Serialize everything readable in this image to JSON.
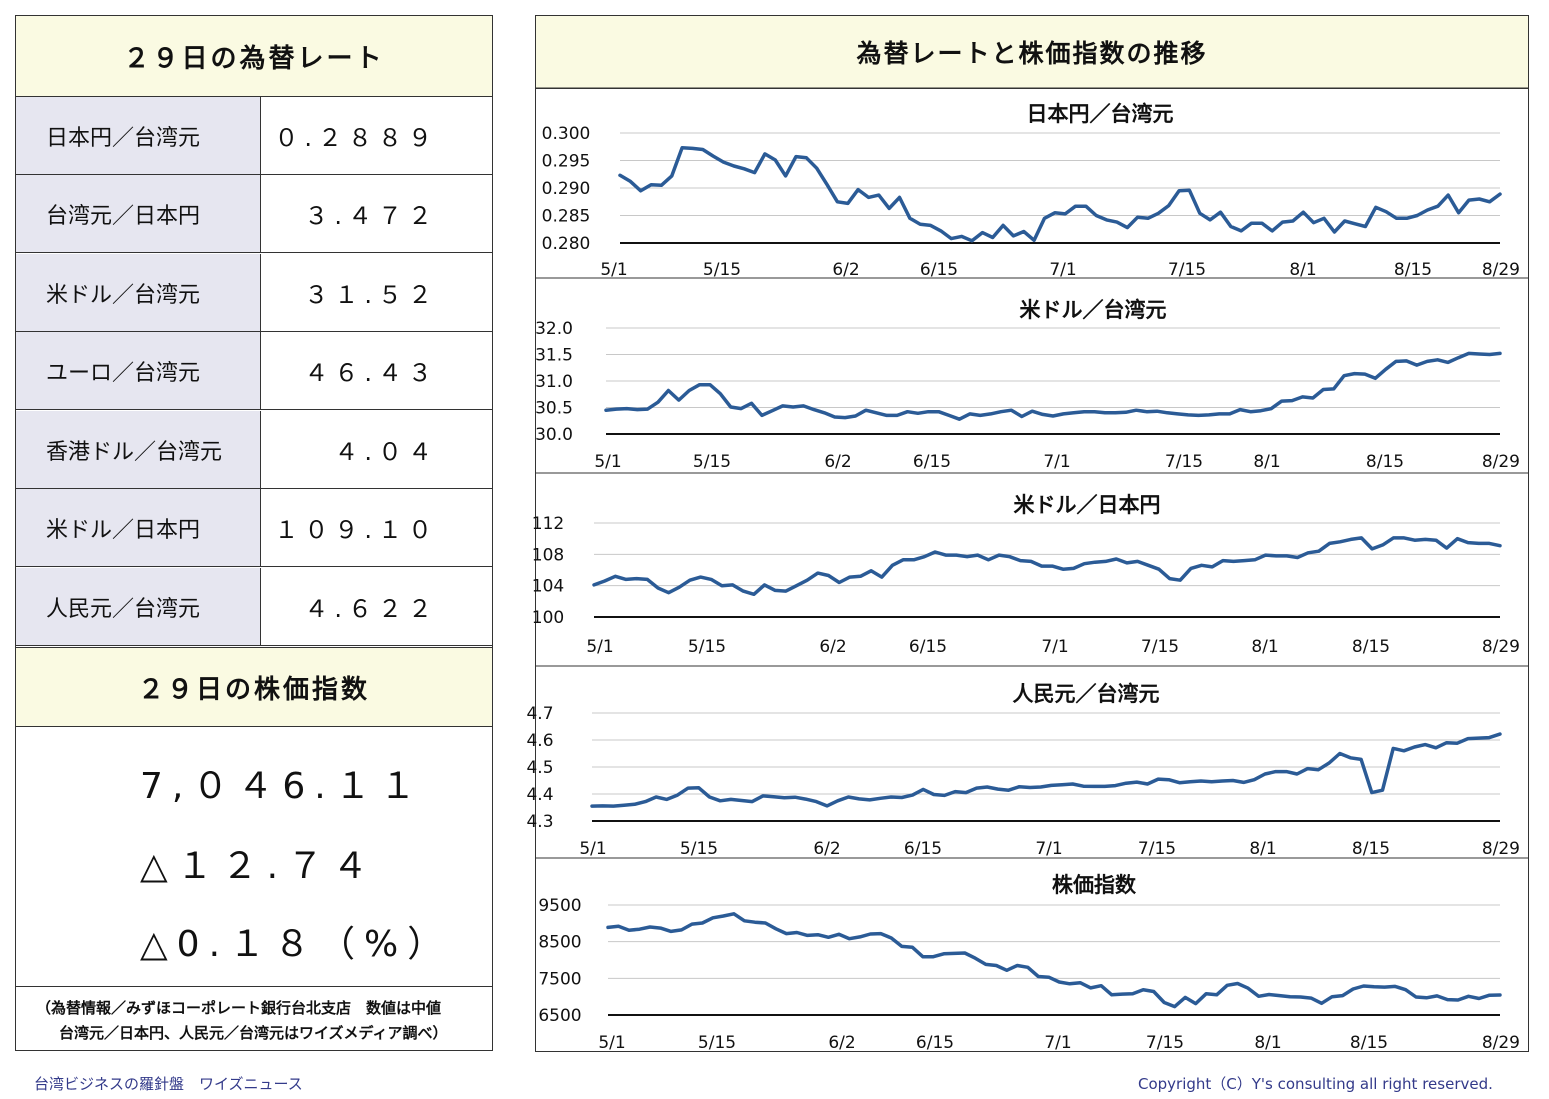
{
  "left": {
    "rates_title": "２９日の為替レート",
    "rates": [
      {
        "label": "日本円／台湾元",
        "value": "０.２８８９"
      },
      {
        "label": "台湾元／日本円",
        "value": "３.４７２"
      },
      {
        "label": "米ドル／台湾元",
        "value": "３１.５２"
      },
      {
        "label": "ユーロ／台湾元",
        "value": "４６.４３"
      },
      {
        "label": "香港ドル／台湾元",
        "value": "４.０４"
      },
      {
        "label": "米ドル／日本円",
        "value": "１０９.１０"
      },
      {
        "label": "人民元／台湾元",
        "value": "４.６２２"
      }
    ],
    "stock_title": "２９日の株価指数",
    "stock_index": "7,０４6.１１",
    "stock_change": "△１２.７４",
    "stock_pct": "△0.１８（%）",
    "note_line1": "（為替情報／みずほコーポレート銀行台北支店　数値は中値",
    "note_line2": "台湾元／日本円、人民元／台湾元はワイズメディア調べ）"
  },
  "right": {
    "title": "為替レートと株価指数の推移"
  },
  "footer": {
    "left": "台湾ビジネスの羅針盤　ワイズニュース",
    "right": "Copyright（C）Y's consulting all right reserved."
  },
  "colors": {
    "line": "#2b5b96",
    "header_bg": "#fafae2",
    "label_bg": "#e6e6f0",
    "grid": "#c8c8c8",
    "footer_text": "#333a8a"
  },
  "chart_data": [
    {
      "type": "line",
      "title": "日本円／台湾元",
      "ylim": [
        0.28,
        0.3
      ],
      "yticks": [
        "0.300",
        "0.295",
        "0.290",
        "0.285",
        "0.280"
      ],
      "xticks": [
        "5/1",
        "5/15",
        "6/2",
        "6/15",
        "7/1",
        "7/15",
        "8/1",
        "8/15",
        "8/29"
      ],
      "values": [
        0.2923,
        0.2912,
        0.2895,
        0.2906,
        0.2905,
        0.2922,
        0.2973,
        0.2972,
        0.297,
        0.2958,
        0.2947,
        0.294,
        0.2935,
        0.2928,
        0.2962,
        0.2951,
        0.2922,
        0.2957,
        0.2955,
        0.2936,
        0.2906,
        0.2875,
        0.2872,
        0.2897,
        0.2883,
        0.2887,
        0.2863,
        0.2883,
        0.2845,
        0.2834,
        0.2832,
        0.2822,
        0.2808,
        0.2812,
        0.2804,
        0.2819,
        0.281,
        0.2832,
        0.2813,
        0.2821,
        0.2805,
        0.2845,
        0.2855,
        0.2853,
        0.2867,
        0.2867,
        0.285,
        0.2842,
        0.2838,
        0.2828,
        0.2847,
        0.2845,
        0.2854,
        0.2868,
        0.2895,
        0.2896,
        0.2854,
        0.2842,
        0.2856,
        0.283,
        0.2822,
        0.2836,
        0.2836,
        0.2822,
        0.2838,
        0.284,
        0.2856,
        0.2837,
        0.2845,
        0.282,
        0.284,
        0.2835,
        0.283,
        0.2865,
        0.2857,
        0.2845,
        0.2845,
        0.285,
        0.286,
        0.2867,
        0.2887,
        0.2855,
        0.2878,
        0.288,
        0.2875,
        0.2889
      ]
    },
    {
      "type": "line",
      "title": "米ドル／台湾元",
      "ylim": [
        30.0,
        32.0
      ],
      "yticks": [
        "32.0",
        "31.5",
        "31.0",
        "30.5",
        "30.0"
      ],
      "xticks": [
        "5/1",
        "5/15",
        "6/2",
        "6/15",
        "7/1",
        "7/15",
        "8/1",
        "8/15",
        "8/29"
      ],
      "values": [
        30.45,
        30.47,
        30.48,
        30.46,
        30.47,
        30.6,
        30.82,
        30.64,
        30.82,
        30.93,
        30.93,
        30.76,
        30.51,
        30.48,
        30.58,
        30.35,
        30.44,
        30.53,
        30.51,
        30.53,
        30.46,
        30.4,
        30.32,
        30.31,
        30.34,
        30.45,
        30.4,
        30.35,
        30.35,
        30.42,
        30.39,
        30.42,
        30.42,
        30.35,
        30.28,
        30.38,
        30.35,
        30.38,
        30.42,
        30.45,
        30.33,
        30.43,
        30.37,
        30.34,
        30.38,
        30.4,
        30.42,
        30.42,
        30.4,
        30.4,
        30.41,
        30.45,
        30.42,
        30.43,
        30.4,
        30.38,
        30.36,
        30.35,
        30.36,
        30.38,
        30.38,
        30.46,
        30.42,
        30.44,
        30.48,
        30.62,
        30.63,
        30.7,
        30.68,
        30.84,
        30.85,
        31.1,
        31.14,
        31.13,
        31.05,
        31.22,
        31.37,
        31.38,
        31.3,
        31.37,
        31.4,
        31.35,
        31.44,
        31.52,
        31.51,
        31.5,
        31.52
      ]
    },
    {
      "type": "line",
      "title": "米ドル／日本円",
      "ylim": [
        100,
        112
      ],
      "yticks": [
        "112",
        "108",
        "104",
        "100"
      ],
      "xticks": [
        "5/1",
        "5/15",
        "6/2",
        "6/15",
        "7/1",
        "7/15",
        "8/1",
        "8/15",
        "8/29"
      ],
      "values": [
        104.1,
        104.6,
        105.2,
        104.8,
        104.9,
        104.8,
        103.7,
        103.1,
        103.8,
        104.7,
        105.1,
        104.8,
        104.0,
        104.1,
        103.3,
        102.9,
        104.1,
        103.4,
        103.3,
        104.0,
        104.7,
        105.6,
        105.3,
        104.4,
        105.1,
        105.2,
        105.9,
        105.1,
        106.6,
        107.3,
        107.3,
        107.7,
        108.3,
        107.9,
        107.9,
        107.7,
        107.9,
        107.3,
        107.9,
        107.7,
        107.2,
        107.1,
        106.5,
        106.5,
        106.1,
        106.2,
        106.8,
        107.0,
        107.1,
        107.4,
        106.9,
        107.1,
        106.6,
        106.1,
        104.9,
        104.7,
        106.2,
        106.6,
        106.4,
        107.2,
        107.1,
        107.2,
        107.3,
        107.9,
        107.8,
        107.8,
        107.6,
        108.2,
        108.4,
        109.4,
        109.6,
        109.9,
        110.1,
        108.7,
        109.2,
        110.1,
        110.1,
        109.8,
        109.9,
        109.8,
        108.8,
        110.0,
        109.5,
        109.4,
        109.4,
        109.1
      ]
    },
    {
      "type": "line",
      "title": "人民元／台湾元",
      "ylim": [
        4.3,
        4.7
      ],
      "yticks": [
        "4.7",
        "4.6",
        "4.5",
        "4.4",
        "4.3"
      ],
      "xticks": [
        "5/1",
        "5/15",
        "6/2",
        "6/15",
        "7/1",
        "7/15",
        "8/1",
        "8/15",
        "8/29"
      ],
      "values": [
        4.355,
        4.356,
        4.355,
        4.358,
        4.362,
        4.372,
        4.389,
        4.38,
        4.396,
        4.422,
        4.423,
        4.389,
        4.375,
        4.38,
        4.376,
        4.372,
        4.393,
        4.39,
        4.386,
        4.388,
        4.381,
        4.372,
        4.356,
        4.375,
        4.389,
        4.382,
        4.378,
        4.384,
        4.389,
        4.387,
        4.396,
        4.417,
        4.398,
        4.395,
        4.409,
        4.405,
        4.422,
        4.426,
        4.418,
        4.414,
        4.427,
        4.424,
        4.426,
        4.432,
        4.434,
        4.437,
        4.429,
        4.428,
        4.428,
        4.431,
        4.44,
        4.444,
        4.437,
        4.455,
        4.453,
        4.442,
        4.445,
        4.448,
        4.445,
        4.448,
        4.45,
        4.443,
        4.453,
        4.474,
        4.483,
        4.483,
        4.474,
        4.494,
        4.49,
        4.515,
        4.55,
        4.534,
        4.528,
        4.405,
        4.414,
        4.569,
        4.56,
        4.574,
        4.583,
        4.571,
        4.59,
        4.588,
        4.605,
        4.607,
        4.609,
        4.622
      ]
    },
    {
      "type": "line",
      "title": "株価指数",
      "ylim": [
        6500,
        9500
      ],
      "yticks": [
        "9500",
        "8500",
        "7500",
        "6500"
      ],
      "xticks": [
        "5/1",
        "5/15",
        "6/2",
        "6/15",
        "7/1",
        "7/15",
        "8/1",
        "8/15",
        "8/29"
      ],
      "values": [
        8890,
        8920,
        8810,
        8840,
        8900,
        8870,
        8780,
        8820,
        8980,
        9010,
        9150,
        9200,
        9260,
        9070,
        9030,
        9010,
        8850,
        8720,
        8750,
        8670,
        8690,
        8620,
        8700,
        8580,
        8630,
        8710,
        8720,
        8600,
        8370,
        8350,
        8090,
        8090,
        8170,
        8180,
        8190,
        8050,
        7880,
        7850,
        7720,
        7850,
        7800,
        7550,
        7530,
        7400,
        7350,
        7380,
        7240,
        7300,
        7050,
        7070,
        7080,
        7190,
        7140,
        6840,
        6730,
        6980,
        6810,
        7080,
        7050,
        7310,
        7360,
        7230,
        7010,
        7060,
        7030,
        7000,
        6990,
        6960,
        6820,
        7000,
        7030,
        7210,
        7290,
        7270,
        7260,
        7280,
        7190,
        6990,
        6970,
        7020,
        6920,
        6910,
        7010,
        6950,
        7040,
        7046
      ]
    }
  ]
}
